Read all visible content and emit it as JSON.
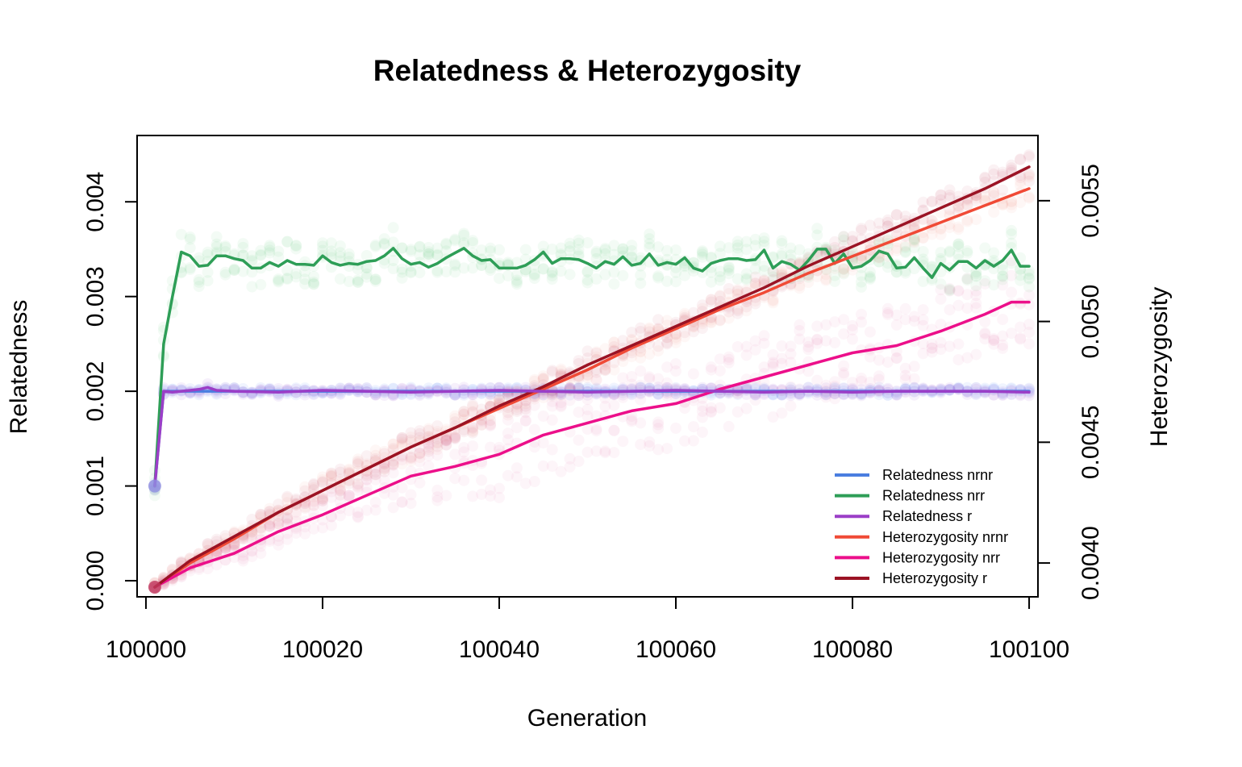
{
  "chart_data": {
    "type": "line",
    "title": "Relatedness & Heterozygosity",
    "xlabel": "Generation",
    "ylabel_left": "Relatedness",
    "ylabel_right": "Heterozygosity",
    "xlim": [
      99999,
      100101
    ],
    "ylim_left": [
      -0.00017,
      0.0047
    ],
    "ylim_right": [
      0.00386,
      0.00577
    ],
    "x_ticks": [
      100000,
      100020,
      100040,
      100060,
      100080,
      100100
    ],
    "x_tick_labels": [
      "100000",
      "100020",
      "100040",
      "100060",
      "100080",
      "100100"
    ],
    "y_left_ticks": [
      0.0,
      0.001,
      0.002,
      0.003,
      0.004
    ],
    "y_left_tick_labels": [
      "0.000",
      "0.001",
      "0.002",
      "0.003",
      "0.004"
    ],
    "y_right_ticks": [
      0.004,
      0.0045,
      0.005,
      0.0055
    ],
    "y_right_tick_labels": [
      "0.0040",
      "0.0045",
      "0.0050",
      "0.0055"
    ],
    "grid": false,
    "legend_position": "bottom-right",
    "legend": [
      {
        "label": "Relatedness nrnr",
        "color": "#4a7ee0"
      },
      {
        "label": "Relatedness nrr",
        "color": "#2e9e57"
      },
      {
        "label": "Relatedness r",
        "color": "#9b3ec7"
      },
      {
        "label": "Heterozygosity nrnr",
        "color": "#f04a36"
      },
      {
        "label": "Heterozygosity nrr",
        "color": "#ec0f8a"
      },
      {
        "label": "Heterozygosity r",
        "color": "#9b1324"
      }
    ],
    "series": [
      {
        "name": "Relatedness nrnr",
        "axis": "left",
        "color": "#4a7ee0",
        "x": [
          100001,
          100002,
          100010,
          100020,
          100030,
          100040,
          100050,
          100060,
          100070,
          100080,
          100090,
          100100
        ],
        "y": [
          0.001,
          0.002,
          0.002,
          0.002,
          0.002,
          0.002,
          0.002,
          0.002,
          0.002,
          0.002,
          0.002,
          0.002
        ]
      },
      {
        "name": "Relatedness nrr",
        "axis": "left",
        "color": "#2e9e57",
        "x": [
          100001,
          100002,
          100003,
          100004,
          100005,
          100006,
          100007,
          100008,
          100009,
          100010,
          100011,
          100012,
          100013,
          100014,
          100015,
          100016,
          100017,
          100018,
          100019,
          100020,
          100021,
          100022,
          100023,
          100024,
          100025,
          100026,
          100027,
          100028,
          100029,
          100030,
          100031,
          100032,
          100033,
          100034,
          100035,
          100036,
          100037,
          100038,
          100039,
          100040,
          100041,
          100042,
          100043,
          100044,
          100045,
          100046,
          100047,
          100048,
          100049,
          100050,
          100051,
          100052,
          100053,
          100054,
          100055,
          100056,
          100057,
          100058,
          100059,
          100060,
          100061,
          100062,
          100063,
          100064,
          100065,
          100066,
          100067,
          100068,
          100069,
          100070,
          100071,
          100072,
          100073,
          100074,
          100075,
          100076,
          100077,
          100078,
          100079,
          100080,
          100081,
          100082,
          100083,
          100084,
          100085,
          100086,
          100087,
          100088,
          100089,
          100090,
          100091,
          100092,
          100093,
          100094,
          100095,
          100096,
          100097,
          100098,
          100099,
          100100
        ],
        "y": [
          0.001,
          0.0025,
          0.003,
          0.00347,
          0.00343,
          0.00332,
          0.00333,
          0.00343,
          0.00343,
          0.0034,
          0.00338,
          0.0033,
          0.0033,
          0.00336,
          0.00332,
          0.00338,
          0.00334,
          0.00334,
          0.00333,
          0.00343,
          0.00336,
          0.00333,
          0.00335,
          0.00334,
          0.00337,
          0.00338,
          0.00343,
          0.00351,
          0.0034,
          0.00334,
          0.00336,
          0.00331,
          0.00335,
          0.00341,
          0.00346,
          0.00351,
          0.00343,
          0.00338,
          0.00339,
          0.0033,
          0.0033,
          0.0033,
          0.00333,
          0.00339,
          0.00347,
          0.00335,
          0.0034,
          0.0034,
          0.00339,
          0.00335,
          0.0033,
          0.00337,
          0.00334,
          0.00342,
          0.00333,
          0.00335,
          0.00345,
          0.00333,
          0.00336,
          0.00334,
          0.00341,
          0.0033,
          0.00327,
          0.00335,
          0.00338,
          0.0034,
          0.0034,
          0.00338,
          0.00339,
          0.00349,
          0.0033,
          0.00337,
          0.00334,
          0.00328,
          0.00338,
          0.0035,
          0.0035,
          0.00335,
          0.00345,
          0.0033,
          0.00332,
          0.00338,
          0.00348,
          0.00345,
          0.0033,
          0.00331,
          0.00341,
          0.0033,
          0.0032,
          0.00335,
          0.00328,
          0.00337,
          0.00337,
          0.0033,
          0.00338,
          0.00332,
          0.00338,
          0.00349,
          0.00332,
          0.00332
        ]
      },
      {
        "name": "Relatedness r",
        "axis": "left",
        "color": "#9b3ec7",
        "x": [
          100001,
          100002,
          100003,
          100004,
          100005,
          100006,
          100007,
          100008,
          100010,
          100015,
          100020,
          100025,
          100030,
          100035,
          100040,
          100045,
          100050,
          100055,
          100060,
          100065,
          100070,
          100075,
          100080,
          100085,
          100090,
          100095,
          100100
        ],
        "y": [
          0.001,
          0.002,
          0.00199,
          0.002,
          0.00201,
          0.00202,
          0.00204,
          0.00201,
          0.002,
          0.00199,
          0.00201,
          0.002,
          0.00199,
          0.002,
          0.00201,
          0.002,
          0.00199,
          0.002,
          0.00201,
          0.002,
          0.00199,
          0.002,
          0.00199,
          0.002,
          0.002,
          0.002,
          0.00199
        ]
      },
      {
        "name": "Heterozygosity nrnr",
        "axis": "right",
        "color": "#f04a36",
        "x": [
          100001,
          100005,
          100010,
          100015,
          100020,
          100025,
          100030,
          100035,
          100040,
          100045,
          100050,
          100055,
          100060,
          100065,
          100070,
          100075,
          100080,
          100085,
          100090,
          100095,
          100100
        ],
        "y": [
          0.0039,
          0.004,
          0.0041,
          0.00421,
          0.0043,
          0.00439,
          0.00448,
          0.00456,
          0.00464,
          0.00472,
          0.0048,
          0.00489,
          0.00497,
          0.00505,
          0.00512,
          0.0052,
          0.00527,
          0.00534,
          0.00541,
          0.00548,
          0.00555
        ]
      },
      {
        "name": "Heterozygosity nrr",
        "axis": "right",
        "color": "#ec0f8a",
        "x": [
          100001,
          100005,
          100010,
          100015,
          100020,
          100025,
          100030,
          100035,
          100040,
          100045,
          100050,
          100055,
          100060,
          100065,
          100070,
          100075,
          100080,
          100085,
          100090,
          100095,
          100098,
          100100
        ],
        "y": [
          0.0039,
          0.00398,
          0.00404,
          0.00413,
          0.0042,
          0.00428,
          0.00436,
          0.0044,
          0.00445,
          0.00453,
          0.00458,
          0.00463,
          0.00466,
          0.00472,
          0.00477,
          0.00482,
          0.00487,
          0.0049,
          0.00496,
          0.00503,
          0.00508,
          0.00508
        ]
      },
      {
        "name": "Heterozygosity r",
        "axis": "right",
        "color": "#9b1324",
        "x": [
          100001,
          100005,
          100010,
          100015,
          100020,
          100025,
          100030,
          100035,
          100040,
          100045,
          100050,
          100055,
          100060,
          100065,
          100070,
          100075,
          100080,
          100085,
          100090,
          100095,
          100100
        ],
        "y": [
          0.0039,
          0.00401,
          0.00411,
          0.00421,
          0.0043,
          0.00439,
          0.00448,
          0.00456,
          0.00465,
          0.00473,
          0.00482,
          0.0049,
          0.00498,
          0.00506,
          0.00514,
          0.00523,
          0.00531,
          0.00539,
          0.00547,
          0.00555,
          0.00564
        ]
      }
    ]
  }
}
